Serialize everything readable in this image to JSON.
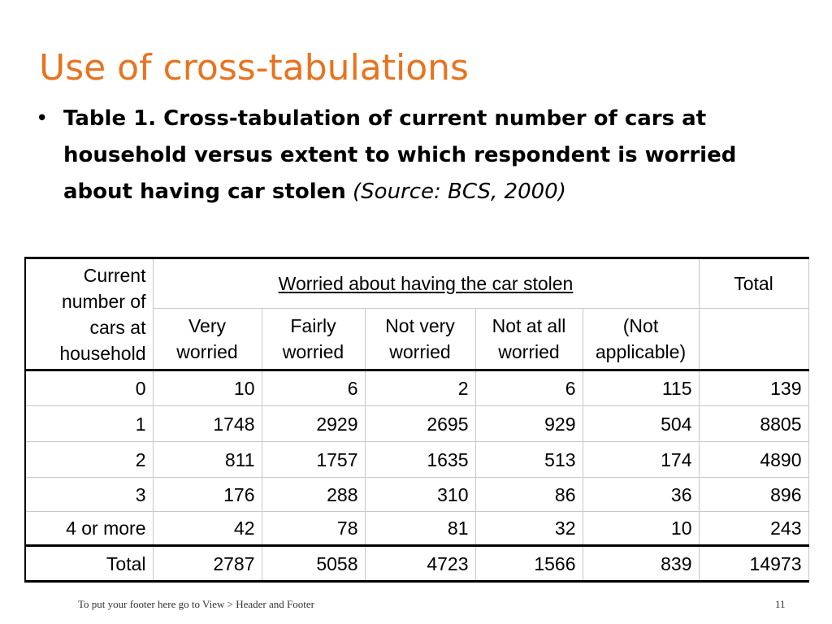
{
  "slide": {
    "title": "Use of cross-tabulations",
    "bullet_bold": "Table 1.  Cross-tabulation of current number of cars at household versus extent to which respondent is worried about having car stolen",
    "bullet_source": "(Source: BCS, 2000)"
  },
  "table": {
    "stub_header": "Current number of cars at household",
    "group_header": "Worried about having the car stolen",
    "total_header": "Total",
    "columns": [
      "Very worried",
      "Fairly worried",
      "Not very worried",
      "Not at all worried",
      "(Not applicable)"
    ],
    "rows": [
      {
        "label": "0",
        "values": [
          "10",
          "6",
          "2",
          "6",
          "115",
          "139"
        ]
      },
      {
        "label": "1",
        "values": [
          "1748",
          "2929",
          "2695",
          "929",
          "504",
          "8805"
        ]
      },
      {
        "label": "2",
        "values": [
          "811",
          "1757",
          "1635",
          "513",
          "174",
          "4890"
        ]
      },
      {
        "label": "3",
        "values": [
          "176",
          "288",
          "310",
          "86",
          "36",
          "896"
        ]
      },
      {
        "label": "4 or more",
        "values": [
          "42",
          "78",
          "81",
          "32",
          "10",
          "243"
        ]
      }
    ],
    "total_row": {
      "label": "Total",
      "values": [
        "2787",
        "5058",
        "4723",
        "1566",
        "839",
        "14973"
      ]
    }
  },
  "footer": {
    "note": "To put your footer here go to View > Header and Footer",
    "page_number": "11"
  }
}
